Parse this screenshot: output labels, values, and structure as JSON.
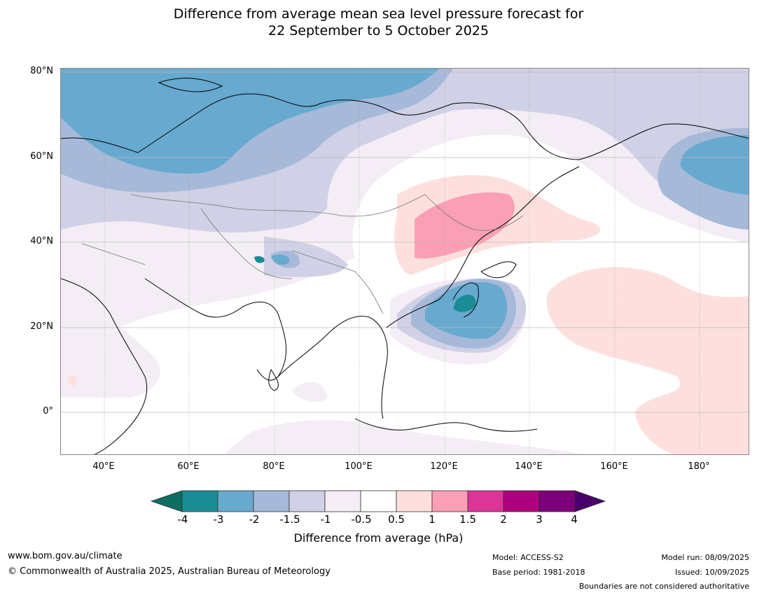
{
  "title": {
    "line1": "Difference from average mean sea level pressure forecast for",
    "line2": "22 September to 5 October 2025"
  },
  "map": {
    "region": "Asia / Western Pacific",
    "lat_labels": [
      "80°N",
      "60°N",
      "40°N",
      "20°N",
      "0°"
    ],
    "lon_labels": [
      "40°E",
      "60°E",
      "80°E",
      "100°E",
      "120°E",
      "140°E",
      "160°E",
      "180°"
    ]
  },
  "colorbar": {
    "title": "Difference from average (hPa)",
    "tick_labels": [
      "-4",
      "-3",
      "-2",
      "-1.5",
      "-1",
      "-0.5",
      "0.5",
      "1",
      "1.5",
      "2",
      "3",
      "4"
    ],
    "colors": [
      "#1a8c96",
      "#67a9cf",
      "#a6b9d9",
      "#d0d1e6",
      "#f4edf5",
      "#ffffff",
      "#fde0dd",
      "#fa9fb5",
      "#dd3497",
      "#ae017e",
      "#7a0177"
    ],
    "under_color": "#0e6e62",
    "over_color": "#49006a"
  },
  "footer": {
    "website": "www.bom.gov.au/climate",
    "copyright": "© Commonwealth of Australia 2025, Australian Bureau of Meteorology",
    "model": "Model: ACCESS-S2",
    "base_period": "Base period: 1981-2018",
    "model_run": "Model run: 08/09/2025",
    "issued": "Issued: 10/09/2025",
    "disclaimer": "Boundaries are not considered authoritative"
  }
}
